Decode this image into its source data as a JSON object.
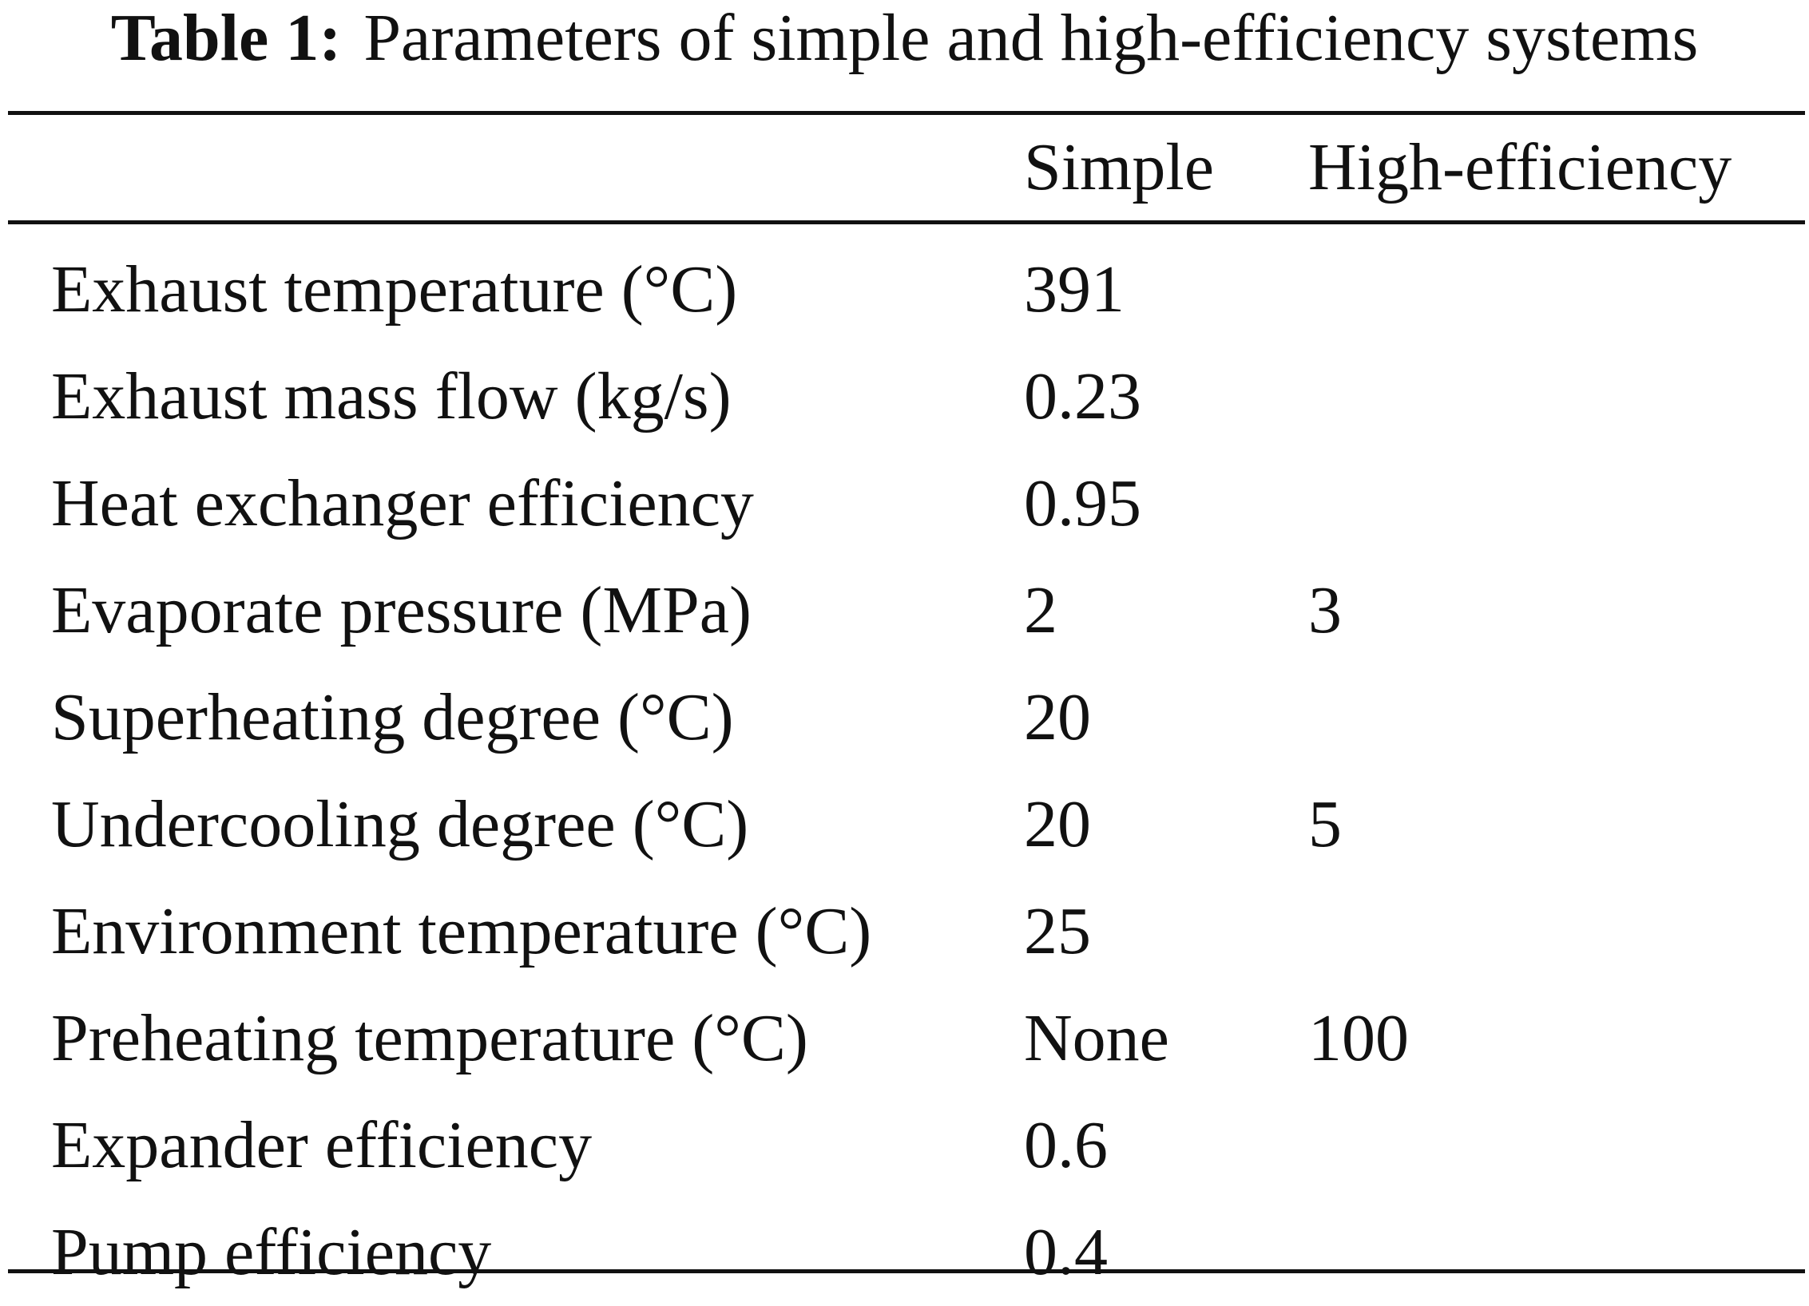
{
  "table": {
    "caption_label": "Table 1:",
    "caption_text": "Parameters of simple and high-efficiency systems",
    "headers": {
      "parameter": "",
      "simple": "Simple",
      "high": "High-efficiency"
    },
    "rows": [
      {
        "parameter": "Exhaust temperature (°C)",
        "simple": "391",
        "high": ""
      },
      {
        "parameter": "Exhaust mass flow (kg/s)",
        "simple": "0.23",
        "high": ""
      },
      {
        "parameter": "Heat exchanger efficiency",
        "simple": "0.95",
        "high": ""
      },
      {
        "parameter": "Evaporate pressure (MPa)",
        "simple": "2",
        "high": "3"
      },
      {
        "parameter": "Superheating degree (°C)",
        "simple": "20",
        "high": ""
      },
      {
        "parameter": "Undercooling degree (°C)",
        "simple": "20",
        "high": "5"
      },
      {
        "parameter": "Environment temperature (°C)",
        "simple": "25",
        "high": ""
      },
      {
        "parameter": "Preheating temperature (°C)",
        "simple": "None",
        "high": "100"
      },
      {
        "parameter": "Expander efficiency",
        "simple": "0.6",
        "high": ""
      },
      {
        "parameter": "Pump efficiency",
        "simple": "0.4",
        "high": ""
      }
    ]
  }
}
